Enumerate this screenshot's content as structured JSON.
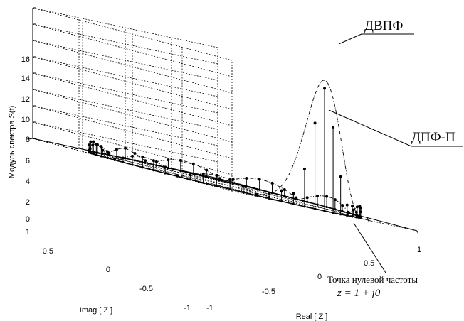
{
  "chart_data": {
    "type": "3d-stem",
    "xlabel": "Real [ Z ]",
    "ylabel": "Imag [ Z ]",
    "zlabel": "Модуль спектра S(f)",
    "x_ticks": [
      "-1",
      "-0.5",
      "0",
      "0.5",
      "1"
    ],
    "y_ticks": [
      "-1",
      "-0.5",
      "0",
      "0.5",
      "1"
    ],
    "z_ticks": [
      "0",
      "2",
      "4",
      "6",
      "8",
      "10",
      "12",
      "14",
      "16"
    ],
    "xlim": [
      -1,
      1
    ],
    "ylim": [
      -1,
      1
    ],
    "zlim": [
      0,
      16
    ],
    "grid": true,
    "series": [
      {
        "name": "ДВПФ",
        "style": "dash-dot",
        "peak": 16
      },
      {
        "name": "ДПФ-П",
        "style": "stem",
        "samples": 64,
        "peak_samples": [
          {
            "angle_deg": 0,
            "value": 15
          },
          {
            "angle_deg": 5.6,
            "value": 10.5
          },
          {
            "angle_deg": -5.6,
            "value": 10.5
          },
          {
            "angle_deg": 11.25,
            "value": 4.6
          },
          {
            "angle_deg": -11.25,
            "value": 4.6
          }
        ],
        "sidelobe_level": 1.3
      }
    ],
    "annotations": {
      "dtft_label": "ДВПФ",
      "dft_label": "ДПФ-П",
      "zero_freq_label": "Точка нулевой частоты",
      "zero_freq_formula": "z = 1 + j0"
    }
  }
}
